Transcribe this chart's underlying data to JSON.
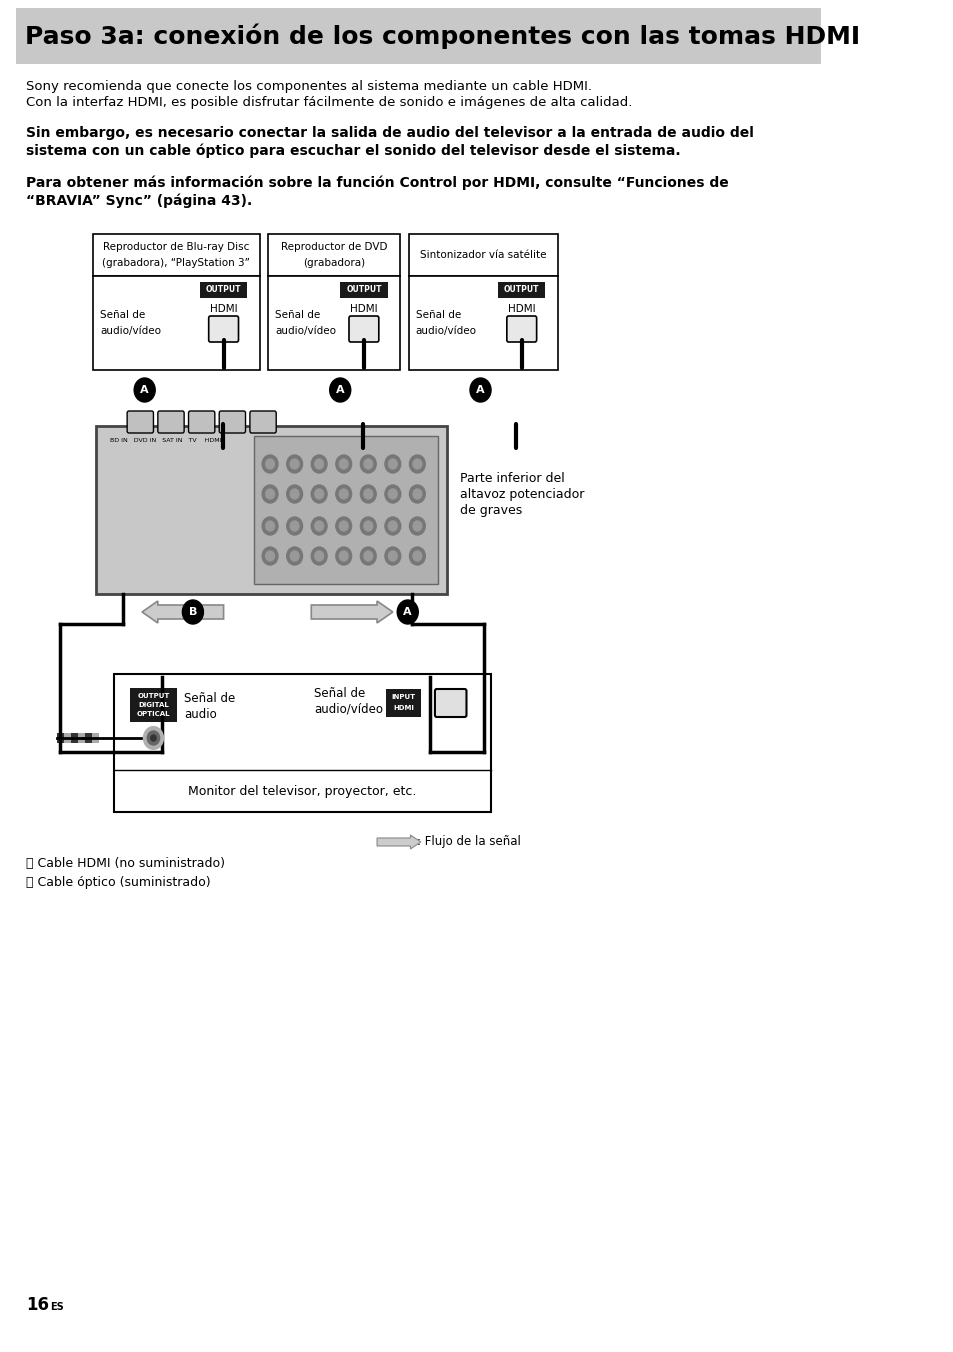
{
  "title": "Paso 3a: conexión de los componentes con las tomas HDMI",
  "title_bg": "#c8c8c8",
  "bg_color": "#ffffff",
  "text_color": "#000000",
  "body_text1": "Sony recomienda que conecte los componentes al sistema mediante un cable HDMI.",
  "body_text2": "Con la interfaz HDMI, es posible disfrutar fácilmente de sonido e imágenes de alta calidad.",
  "bold_text1": "Sin embargo, es necesario conectar la salida de audio del televisor a la entrada de audio del",
  "bold_text2": "sistema con un cable óptico para escuchar el sonido del televisor desde el sistema.",
  "bold_text3": "Para obtener más información sobre la función Control por HDMI, consulte “Funciones de",
  "bold_text4": "“BRAVIA” Sync” (página 43).",
  "device1_title_l1": "Reproductor de Blu-ray Disc",
  "device1_title_l2": "(grabadora), “PlayStation 3”",
  "device2_title_l1": "Reproductor de DVD",
  "device2_title_l2": "(grabadora)",
  "device3_title_l1": "Sintonizador vía satélite",
  "signal_label_l1": "Señal de",
  "signal_label_l2": "audio/vídeo",
  "output_bg": "#1a1a1a",
  "subwoofer_l1": "Parte inferior del",
  "subwoofer_l2": "altavoz potenciador",
  "subwoofer_l3": "de graves",
  "tv_label": "Monitor del televisor, proyector, etc.",
  "signal_audio_l1": "Señal de",
  "signal_audio_l2": "audio",
  "signal_avideo_l1": "Señal de",
  "signal_avideo_l2": "audio/vídeo",
  "footnote_a": "Ⓐ Cable HDMI (no suministrado)",
  "footnote_b": "Ⓑ Cable óptico (suministrado)",
  "signal_flow_label": ": Flujo de la señal",
  "page_num": "16",
  "page_sup": "ES"
}
